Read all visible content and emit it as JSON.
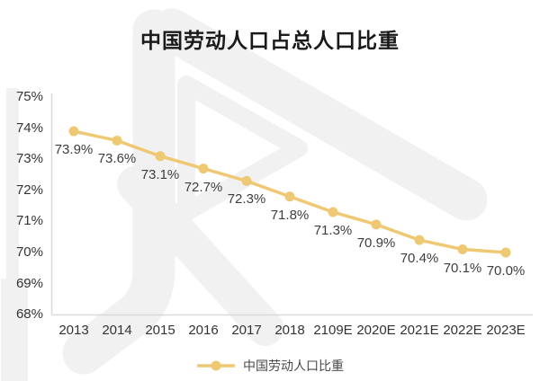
{
  "title": "中国劳动人口占总人口比重",
  "legend": {
    "label": "中国劳动人口比重"
  },
  "colors": {
    "line": "#EFC873",
    "axis": "#D9D9D9",
    "watermark": "#F1F1F1",
    "title_text": "#1A1A1A",
    "tick_text": "#333333",
    "data_label_text": "#3D3D3D",
    "legend_text": "#4A4A4A"
  },
  "chart_data": {
    "type": "line",
    "title": "中国劳动人口占总人口比重",
    "categories": [
      "2013",
      "2014",
      "2015",
      "2016",
      "2017",
      "2018",
      "2109E",
      "2020E",
      "2021E",
      "2022E",
      "2023E"
    ],
    "series": [
      {
        "name": "中国劳动人口比重",
        "values": [
          73.9,
          73.6,
          73.1,
          72.7,
          72.3,
          71.8,
          71.3,
          70.9,
          70.4,
          70.1,
          70.0
        ]
      }
    ],
    "data_labels": [
      "73.9%",
      "73.6%",
      "73.1%",
      "72.7%",
      "72.3%",
      "71.8%",
      "71.3%",
      "70.9%",
      "70.4%",
      "70.1%",
      "70.0%"
    ],
    "xlabel": "",
    "ylabel": "",
    "ylim": [
      68,
      75
    ],
    "ytick_step": 1,
    "ytick_labels": [
      "75%",
      "74%",
      "73%",
      "72%",
      "71%",
      "70%",
      "69%",
      "68%"
    ],
    "grid": false,
    "legend_position": "bottom",
    "marker": "circle"
  }
}
